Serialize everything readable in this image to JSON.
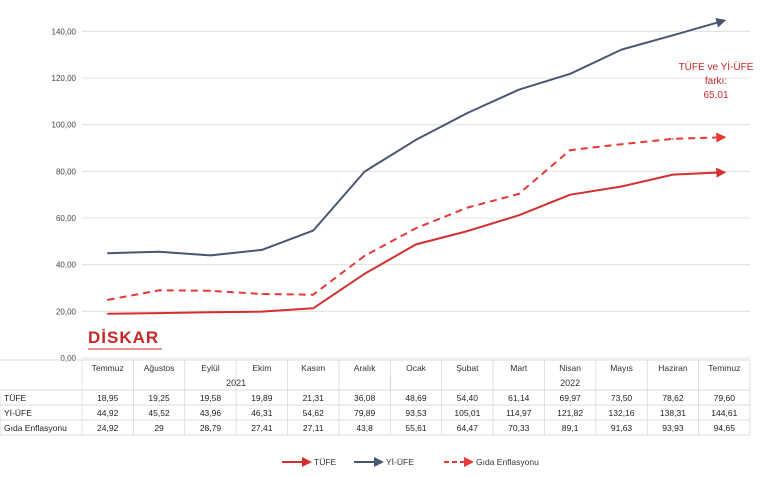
{
  "chart_data": {
    "type": "line",
    "title": "",
    "xlabel": "",
    "ylabel": "",
    "ylim": [
      0,
      150
    ],
    "y_ticks": [
      "0,00",
      "20,00",
      "40,00",
      "60,00",
      "80,00",
      "100,00",
      "120,00",
      "140,00"
    ],
    "y_tick_values": [
      0,
      20,
      40,
      60,
      80,
      100,
      120,
      140
    ],
    "grid": true,
    "categories": [
      "Temmuz",
      "Ağustos",
      "Eylül",
      "Ekim",
      "Kasım",
      "Aralık",
      "Ocak",
      "Şubat",
      "Mart",
      "Nisan",
      "Mayıs",
      "Haziran",
      "Temmuz"
    ],
    "years": [
      {
        "label": "2021",
        "start": 0,
        "end": 5
      },
      {
        "label": "2022",
        "start": 6,
        "end": 12
      }
    ],
    "series": [
      {
        "name": "TÜFE",
        "color": "#d32f2f",
        "style": "solid",
        "values": [
          18.95,
          19.25,
          19.58,
          19.89,
          21.31,
          36.08,
          48.69,
          54.4,
          61.14,
          69.97,
          73.5,
          78.62,
          79.6
        ],
        "labels": [
          "18,95",
          "19,25",
          "19,58",
          "19,89",
          "21,31",
          "36,08",
          "48,69",
          "54,40",
          "61,14",
          "69,97",
          "73,50",
          "78,62",
          "79,60"
        ]
      },
      {
        "name": "Yİ-ÜFE",
        "color": "#4a5772",
        "style": "solid",
        "values": [
          44.92,
          45.52,
          43.96,
          46.31,
          54.62,
          79.89,
          93.53,
          105.01,
          114.97,
          121.82,
          132.16,
          138.31,
          144.61
        ],
        "labels": [
          "44,92",
          "45,52",
          "43,96",
          "46,31",
          "54,62",
          "79,89",
          "93,53",
          "105,01",
          "114,97",
          "121,82",
          "132,16",
          "138,31",
          "144,61"
        ]
      },
      {
        "name": "Gıda Enflasyonu",
        "color": "#e53935",
        "style": "dashed",
        "values": [
          24.92,
          29,
          28.79,
          27.41,
          27.11,
          43.8,
          55.61,
          64.47,
          70.33,
          89.1,
          91.63,
          93.93,
          94.65
        ],
        "labels": [
          "24,92",
          "29",
          "28,79",
          "27,41",
          "27,11",
          "43,8",
          "55,61",
          "64,47",
          "70,33",
          "89,1",
          "91,63",
          "93,93",
          "94,65"
        ]
      }
    ],
    "annotation": {
      "lines": [
        "TÜFE ve Yİ-ÜFE",
        "farkı:",
        "65,01"
      ],
      "color": "#e53935"
    },
    "logo": {
      "text": "DİSKAR",
      "color": "#c62828"
    },
    "legend_position": "bottom"
  }
}
